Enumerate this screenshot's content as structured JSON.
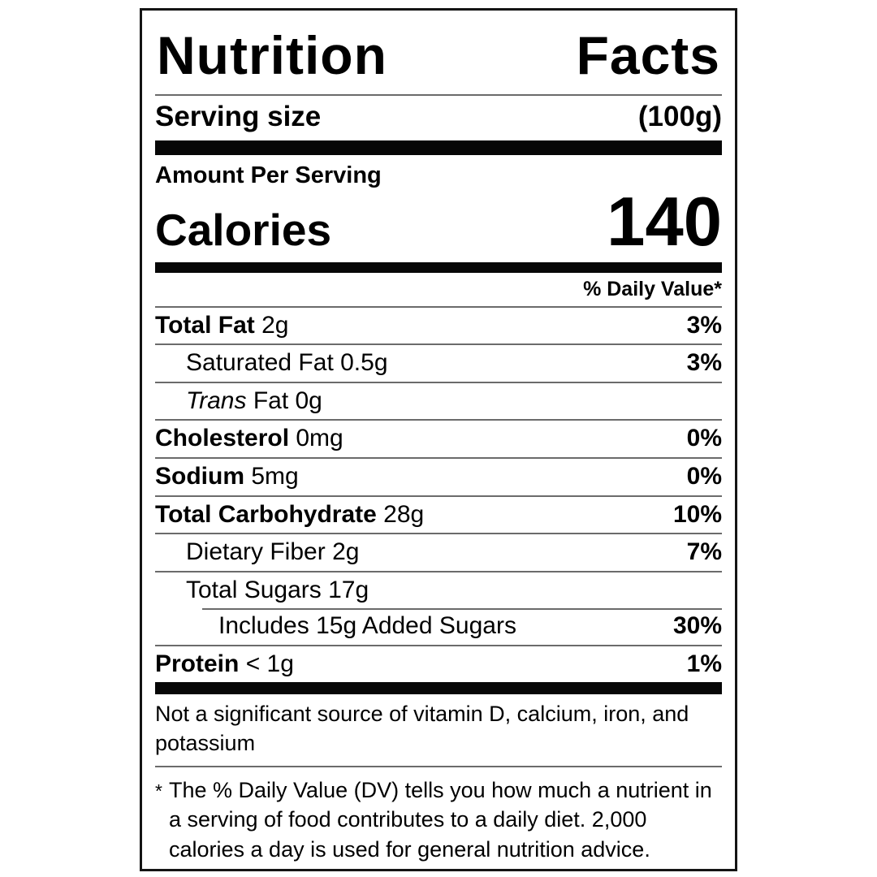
{
  "label": {
    "title": "Nutrition Facts",
    "serving": {
      "label": "Serving size",
      "value": "(100g)"
    },
    "amount_per_serving": "Amount Per Serving",
    "calories": {
      "label": "Calories",
      "value": "140"
    },
    "daily_value_header": "% Daily Value*",
    "nutrients": [
      {
        "name": "Total Fat",
        "amount": "2g",
        "dv": "3%"
      },
      {
        "name": "Saturated Fat",
        "amount": "0.5g",
        "dv": "3%"
      },
      {
        "name_italic": "Trans",
        "amount": "Fat 0g",
        "dv": ""
      },
      {
        "name": "Cholesterol",
        "amount": "0mg",
        "dv": "0%"
      },
      {
        "name": "Sodium",
        "amount": "5mg",
        "dv": "0%"
      },
      {
        "name": "Total Carbohydrate",
        "amount": "28g",
        "dv": "10%"
      },
      {
        "name": "Dietary Fiber",
        "amount": "2g",
        "dv": "7%"
      },
      {
        "name": "Total Sugars",
        "amount": "17g",
        "dv": ""
      },
      {
        "name": "Includes 15g Added Sugars",
        "amount": "",
        "dv": "30%"
      },
      {
        "name": "Protein",
        "amount": "< 1g",
        "dv": "1%"
      }
    ],
    "insignificant_note": "Not a significant source of vitamin D, calcium, iron, and potassium",
    "footnote_marker": "*",
    "footnote": "The % Daily Value (DV) tells you how much a nutrient in a serving of food contributes to a daily diet. 2,000 calories a day is used for general nutrition advice."
  },
  "colors": {
    "text": "#000000",
    "background": "#ffffff",
    "bar": "#070707",
    "hairline": "#6b6b6b"
  }
}
